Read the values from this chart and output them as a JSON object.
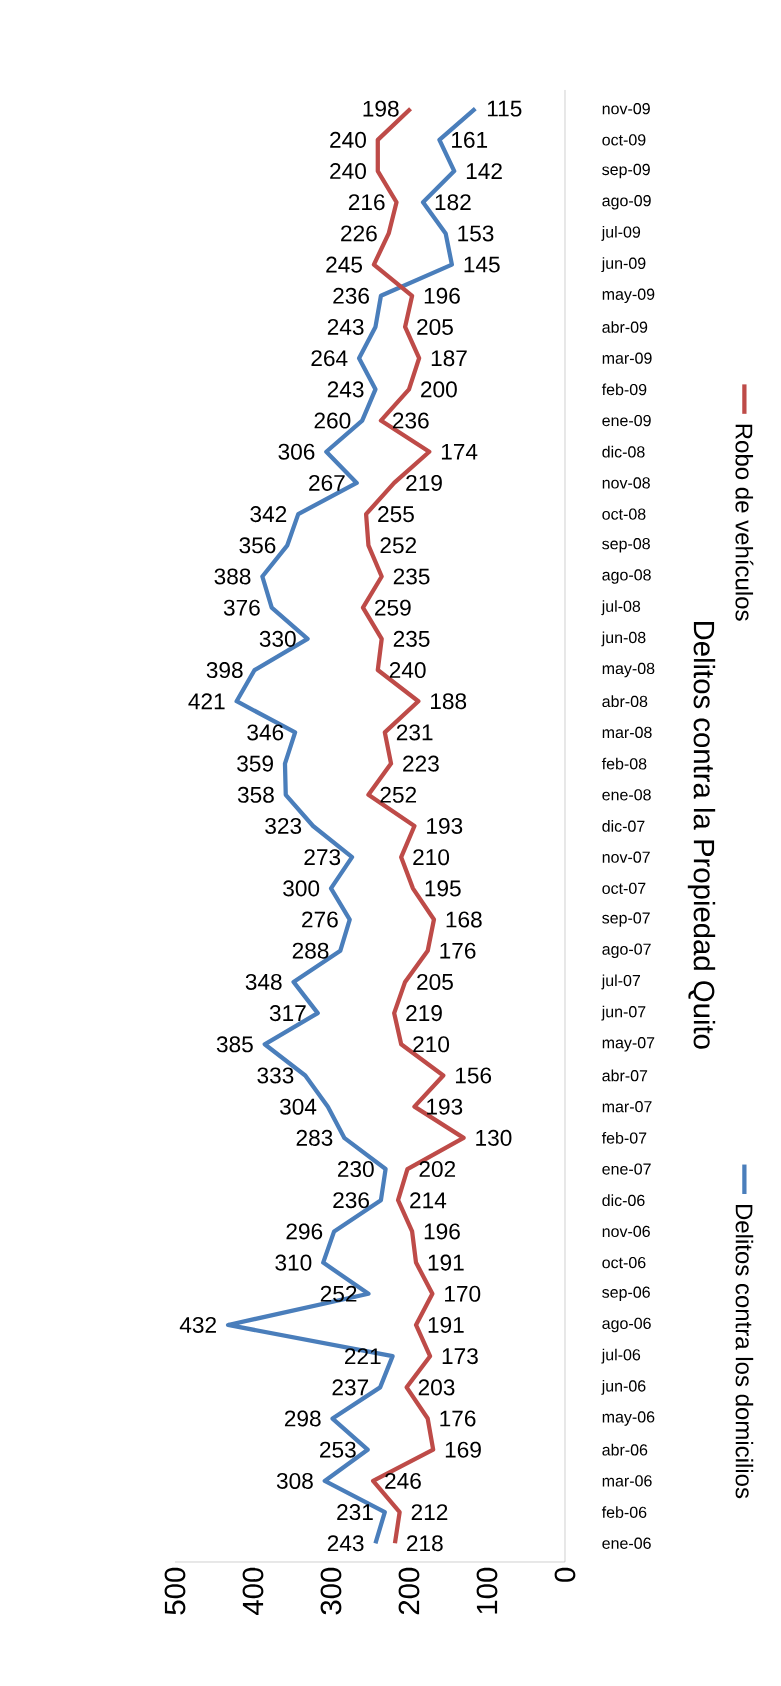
{
  "chart_data": {
    "type": "line",
    "title": "Delitos contra la Propiedad Quito",
    "categories": [
      "nov-09",
      "oct-09",
      "sep-09",
      "ago-09",
      "jul-09",
      "jun-09",
      "may-09",
      "abr-09",
      "mar-09",
      "feb-09",
      "ene-09",
      "dic-08",
      "nov-08",
      "oct-08",
      "sep-08",
      "ago-08",
      "jul-08",
      "jun-08",
      "may-08",
      "abr-08",
      "mar-08",
      "feb-08",
      "ene-08",
      "dic-07",
      "nov-07",
      "oct-07",
      "sep-07",
      "ago-07",
      "jul-07",
      "jun-07",
      "may-07",
      "abr-07",
      "mar-07",
      "feb-07",
      "ene-07",
      "dic-06",
      "nov-06",
      "oct-06",
      "sep-06",
      "ago-06",
      "jul-06",
      "jun-06",
      "may-06",
      "abr-06",
      "mar-06",
      "feb-06",
      "ene-06"
    ],
    "series": [
      {
        "name": "Delitos contra los domicilios",
        "color": "#4a7ebb",
        "values": [
          115,
          161,
          142,
          182,
          153,
          145,
          236,
          243,
          264,
          243,
          260,
          306,
          267,
          342,
          356,
          388,
          376,
          330,
          398,
          421,
          346,
          359,
          358,
          323,
          273,
          300,
          276,
          288,
          348,
          317,
          385,
          333,
          304,
          283,
          230,
          236,
          296,
          310,
          252,
          432,
          221,
          237,
          298,
          253,
          308,
          231,
          243
        ]
      },
      {
        "name": "Robo de vehículos",
        "color": "#be4b48",
        "values": [
          198,
          240,
          240,
          216,
          226,
          245,
          196,
          205,
          187,
          200,
          236,
          174,
          219,
          255,
          252,
          235,
          259,
          235,
          240,
          188,
          231,
          223,
          252,
          193,
          210,
          195,
          168,
          176,
          205,
          219,
          210,
          156,
          193,
          130,
          202,
          214,
          196,
          191,
          170,
          191,
          173,
          203,
          176,
          169,
          246,
          212,
          218
        ]
      }
    ],
    "orientation": "horizontal",
    "xlim": [
      500,
      0
    ],
    "xticks": [
      0,
      100,
      200,
      300,
      400,
      500
    ],
    "data_labels": true,
    "legend": "right"
  }
}
